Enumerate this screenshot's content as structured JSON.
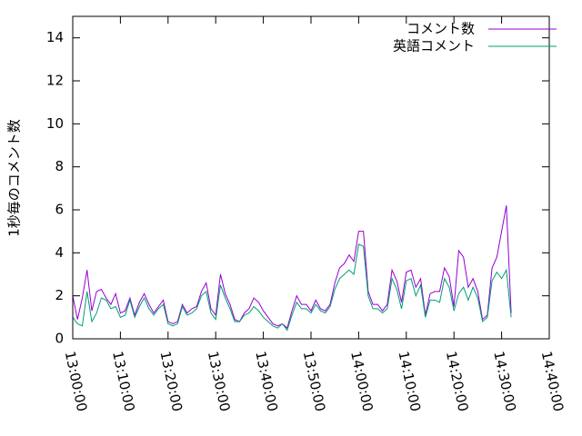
{
  "chart_data": {
    "type": "line",
    "ylabel": "1秒毎のコメント数",
    "legend": "top-right",
    "xlim": [
      "13:00:00",
      "14:40:00"
    ],
    "xticks": [
      "13:00:00",
      "13:10:00",
      "13:20:00",
      "13:30:00",
      "13:40:00",
      "13:50:00",
      "14:00:00",
      "14:10:00",
      "14:20:00",
      "14:30:00",
      "14:40:00"
    ],
    "ylim": [
      0,
      15
    ],
    "yticks": [
      0,
      2,
      4,
      6,
      8,
      10,
      12,
      14
    ],
    "x": [
      "13:00:00",
      "13:01:00",
      "13:02:00",
      "13:03:00",
      "13:04:00",
      "13:05:00",
      "13:06:00",
      "13:07:00",
      "13:08:00",
      "13:09:00",
      "13:10:00",
      "13:11:00",
      "13:12:00",
      "13:13:00",
      "13:14:00",
      "13:15:00",
      "13:16:00",
      "13:17:00",
      "13:18:00",
      "13:19:00",
      "13:20:00",
      "13:21:00",
      "13:22:00",
      "13:23:00",
      "13:24:00",
      "13:25:00",
      "13:26:00",
      "13:27:00",
      "13:28:00",
      "13:29:00",
      "13:30:00",
      "13:31:00",
      "13:32:00",
      "13:33:00",
      "13:34:00",
      "13:35:00",
      "13:36:00",
      "13:37:00",
      "13:38:00",
      "13:39:00",
      "13:40:00",
      "13:41:00",
      "13:42:00",
      "13:43:00",
      "13:44:00",
      "13:45:00",
      "13:46:00",
      "13:47:00",
      "13:48:00",
      "13:49:00",
      "13:50:00",
      "13:51:00",
      "13:52:00",
      "13:53:00",
      "13:54:00",
      "13:55:00",
      "13:56:00",
      "13:57:00",
      "13:58:00",
      "13:59:00",
      "14:00:00",
      "14:01:00",
      "14:02:00",
      "14:03:00",
      "14:04:00",
      "14:05:00",
      "14:06:00",
      "14:07:00",
      "14:08:00",
      "14:09:00",
      "14:10:00",
      "14:11:00",
      "14:12:00",
      "14:13:00",
      "14:14:00",
      "14:15:00",
      "14:16:00",
      "14:17:00",
      "14:18:00",
      "14:19:00",
      "14:20:00",
      "14:21:00",
      "14:22:00",
      "14:23:00",
      "14:24:00",
      "14:25:00",
      "14:26:00",
      "14:27:00",
      "14:28:00",
      "14:29:00",
      "14:30:00",
      "14:31:00",
      "14:32:00"
    ],
    "series": [
      {
        "name": "コメント数",
        "color": "#9400d3",
        "values": [
          2.0,
          0.9,
          1.9,
          3.2,
          1.3,
          2.2,
          2.3,
          1.9,
          1.6,
          2.1,
          1.2,
          1.3,
          1.9,
          1.1,
          1.7,
          2.1,
          1.6,
          1.2,
          1.5,
          1.8,
          0.8,
          0.7,
          0.8,
          1.6,
          1.2,
          1.4,
          1.5,
          2.2,
          2.6,
          1.4,
          1.1,
          3.0,
          2.1,
          1.6,
          0.9,
          0.8,
          1.2,
          1.4,
          1.9,
          1.7,
          1.3,
          1.0,
          0.7,
          0.6,
          0.7,
          0.5,
          1.3,
          2.0,
          1.6,
          1.6,
          1.3,
          1.8,
          1.4,
          1.3,
          1.6,
          2.6,
          3.3,
          3.5,
          3.9,
          3.6,
          5.0,
          5.0,
          2.2,
          1.6,
          1.6,
          1.3,
          1.6,
          3.2,
          2.7,
          1.7,
          3.1,
          3.2,
          2.4,
          2.8,
          1.1,
          2.1,
          2.2,
          2.2,
          3.3,
          2.9,
          1.5,
          4.1,
          3.8,
          2.4,
          2.8,
          2.2,
          0.9,
          1.1,
          3.3,
          3.8,
          5.0,
          6.2,
          1.2
        ]
      },
      {
        "name": "英語コメント",
        "color": "#009e73",
        "values": [
          1.0,
          0.7,
          0.6,
          2.2,
          0.8,
          1.2,
          1.9,
          1.8,
          1.4,
          1.5,
          1.0,
          1.1,
          1.8,
          1.0,
          1.5,
          1.9,
          1.4,
          1.1,
          1.4,
          1.6,
          0.7,
          0.6,
          0.7,
          1.5,
          1.1,
          1.2,
          1.4,
          2.0,
          2.2,
          1.2,
          0.9,
          2.5,
          1.9,
          1.4,
          0.8,
          0.8,
          1.1,
          1.2,
          1.5,
          1.3,
          1.0,
          0.8,
          0.6,
          0.5,
          0.7,
          0.4,
          1.1,
          1.7,
          1.4,
          1.4,
          1.2,
          1.6,
          1.3,
          1.2,
          1.5,
          2.3,
          2.8,
          3.0,
          3.2,
          3.0,
          4.4,
          4.3,
          2.0,
          1.4,
          1.4,
          1.2,
          1.4,
          2.8,
          2.3,
          1.4,
          2.7,
          2.8,
          2.0,
          2.5,
          1.0,
          1.8,
          1.8,
          1.7,
          2.8,
          2.4,
          1.3,
          2.1,
          2.4,
          1.8,
          2.4,
          1.9,
          0.8,
          1.0,
          2.7,
          3.1,
          2.8,
          3.2,
          1.0
        ]
      }
    ]
  }
}
